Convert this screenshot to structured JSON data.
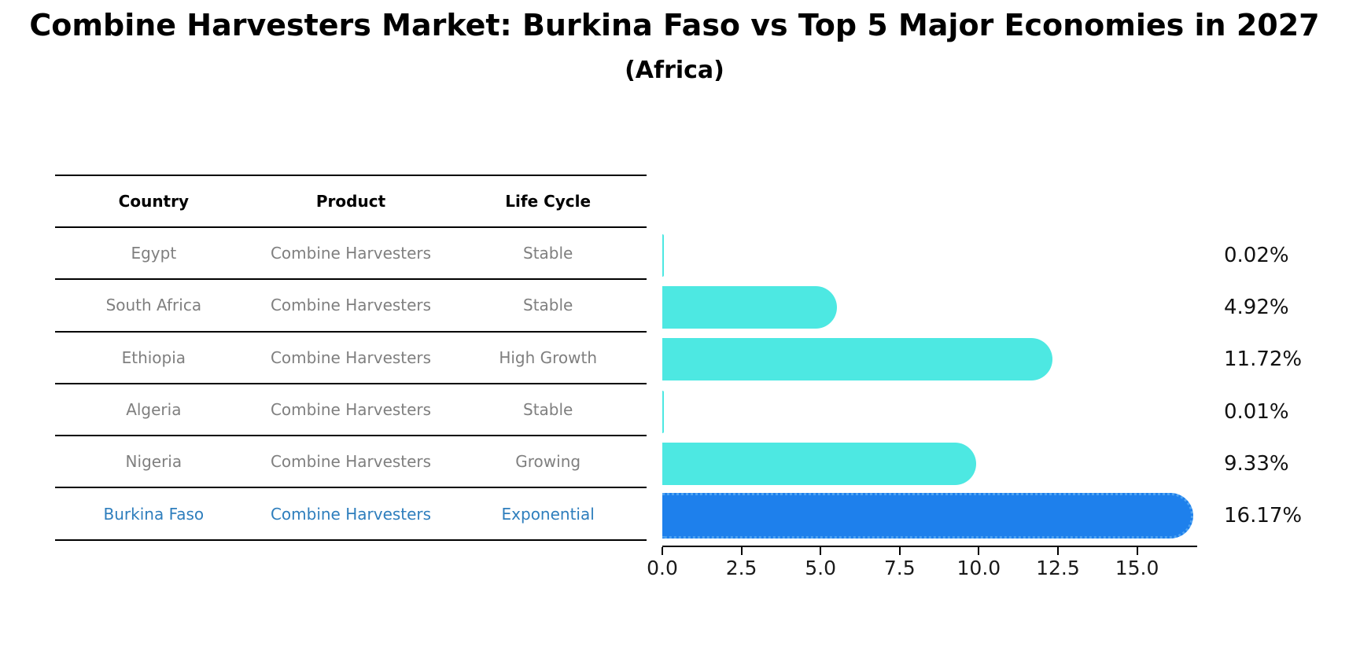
{
  "title": "Combine Harvesters Market: Burkina Faso vs Top 5 Major Economies in 2027",
  "subtitle": "(Africa)",
  "table": {
    "headers": [
      "Country",
      "Product",
      "Life Cycle"
    ],
    "rows": [
      {
        "country": "Egypt",
        "product": "Combine Harvesters",
        "life_cycle": "Stable",
        "highlight": false
      },
      {
        "country": "South Africa",
        "product": "Combine Harvesters",
        "life_cycle": "Stable",
        "highlight": false
      },
      {
        "country": "Ethiopia",
        "product": "Combine Harvesters",
        "life_cycle": "High Growth",
        "highlight": false
      },
      {
        "country": "Algeria",
        "product": "Combine Harvesters",
        "life_cycle": "Stable",
        "highlight": false
      },
      {
        "country": "Nigeria",
        "product": "Combine Harvesters",
        "life_cycle": "Growing",
        "highlight": false
      },
      {
        "country": "Burkina Faso",
        "product": "Combine Harvesters",
        "life_cycle": "Exponential",
        "highlight": true
      }
    ]
  },
  "chart_data": {
    "type": "bar",
    "orientation": "horizontal",
    "title": "Combine Harvesters Market: Burkina Faso vs Top 5 Major Economies in 2027 (Africa)",
    "categories": [
      "Egypt",
      "South Africa",
      "Ethiopia",
      "Algeria",
      "Nigeria",
      "Burkina Faso"
    ],
    "values": [
      0.02,
      4.92,
      11.72,
      0.01,
      9.33,
      16.17
    ],
    "value_labels": [
      "0.02%",
      "4.92%",
      "11.72%",
      "0.01%",
      "9.33%",
      "16.17%"
    ],
    "x_ticks": [
      "0.0",
      "2.5",
      "5.0",
      "7.5",
      "10.0",
      "12.5",
      "15.0"
    ],
    "x_tick_values": [
      0,
      2.5,
      5,
      7.5,
      10,
      12.5,
      15
    ],
    "xlim": [
      0,
      16.9
    ],
    "grid": false,
    "legend": null,
    "highlight_index": 5
  },
  "colors": {
    "bar": "#4DE8E2",
    "highlight_bar": "#1E80EC",
    "highlight_text": "#2E7EBD",
    "table_text": "#7F7F7F",
    "header_text": "#000000",
    "axis": "#000000",
    "value_label": "#111111"
  }
}
